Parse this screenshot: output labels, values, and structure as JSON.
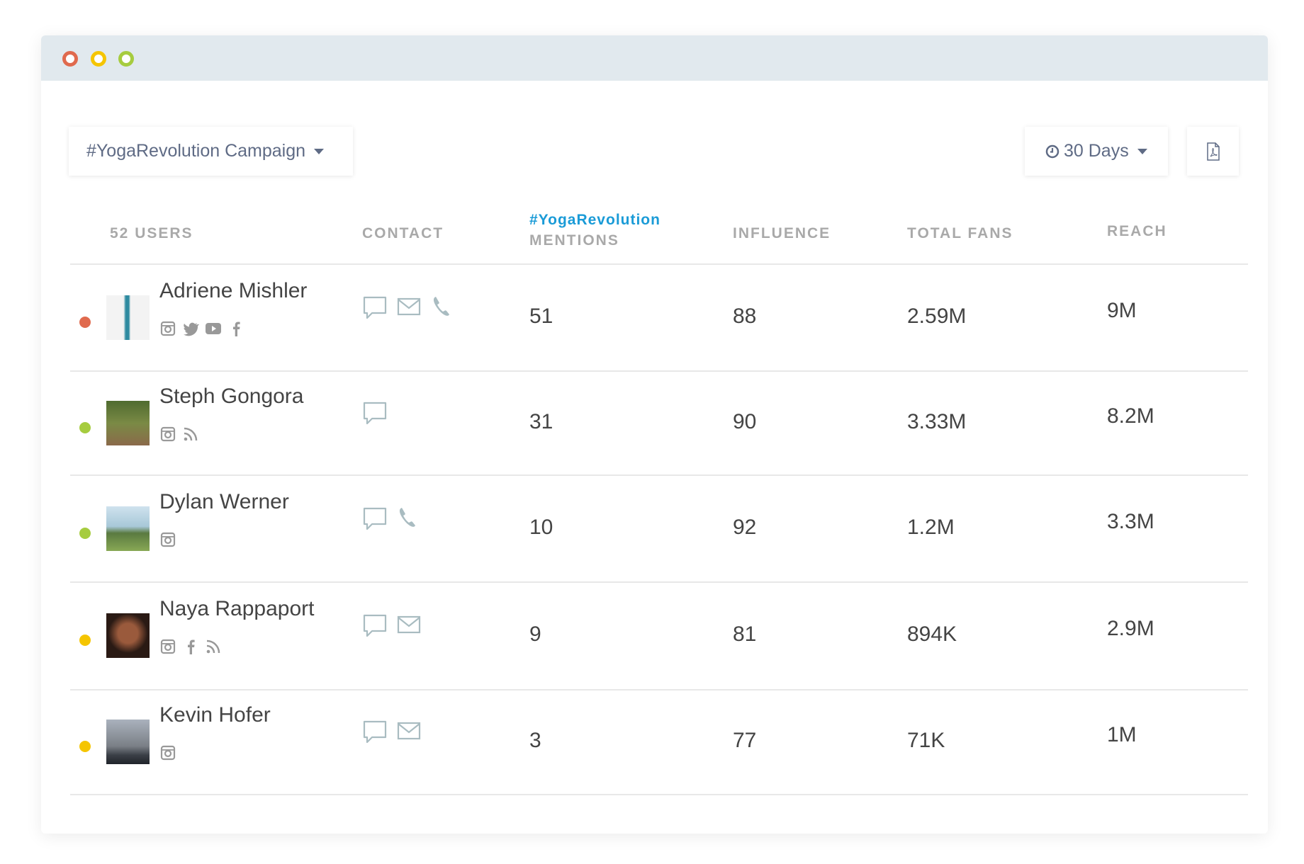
{
  "window": {
    "controls": [
      {
        "name": "close",
        "color": "#e06a4e"
      },
      {
        "name": "minimize",
        "color": "#f5c500"
      },
      {
        "name": "maximize",
        "color": "#a6cc3f"
      }
    ]
  },
  "toolbar": {
    "campaign_label": "#YogaRevolution Campaign",
    "period_label": "30 Days",
    "pdf_icon": "pdf-file-icon",
    "clock_icon": "clock-icon"
  },
  "table": {
    "headers": {
      "users": "52 USERS",
      "contact": "CONTACT",
      "mentions_tag": "#YogaRevolution",
      "mentions": "MENTIONS",
      "influence": "INFLUENCE",
      "total_fans": "TOTAL FANS",
      "reach": "REACH"
    },
    "accent": "#1a9bd7",
    "rows": [
      {
        "name": "Adriene Mishler",
        "status": "#e06a4e",
        "socials": [
          "instagram",
          "twitter",
          "youtube",
          "facebook"
        ],
        "contact": [
          "chat",
          "email",
          "phone"
        ],
        "mentions": "51",
        "influence": "88",
        "total_fans": "2.59M",
        "reach": "9M"
      },
      {
        "name": "Steph Gongora",
        "status": "#a6cc3f",
        "socials": [
          "instagram",
          "rss"
        ],
        "contact": [
          "chat"
        ],
        "mentions": "31",
        "influence": "90",
        "total_fans": "3.33M",
        "reach": "8.2M"
      },
      {
        "name": "Dylan Werner",
        "status": "#a6cc3f",
        "socials": [
          "instagram"
        ],
        "contact": [
          "chat",
          "phone"
        ],
        "mentions": "10",
        "influence": "92",
        "total_fans": "1.2M",
        "reach": "3.3M"
      },
      {
        "name": "Naya Rappaport",
        "status": "#f5c500",
        "socials": [
          "instagram",
          "facebook",
          "rss"
        ],
        "contact": [
          "chat",
          "email"
        ],
        "mentions": "9",
        "influence": "81",
        "total_fans": "894K",
        "reach": "2.9M"
      },
      {
        "name": "Kevin Hofer",
        "status": "#f5c500",
        "socials": [
          "instagram"
        ],
        "contact": [
          "chat",
          "email"
        ],
        "mentions": "3",
        "influence": "77",
        "total_fans": "71K",
        "reach": "1M"
      }
    ]
  }
}
